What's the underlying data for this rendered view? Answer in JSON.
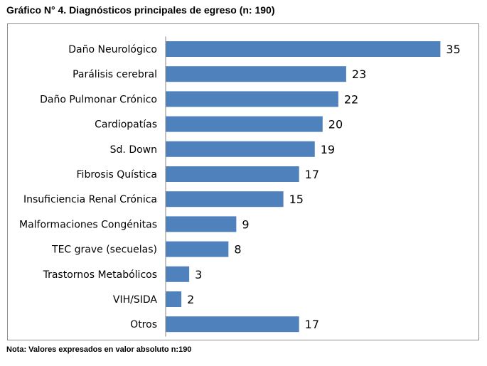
{
  "title": "Gráfico N° 4. Diagnósticos principales de egreso (n: 190)",
  "note": "Nota: Valores expresados en valor absoluto n:190",
  "colors": {
    "bar": "#4f81bd",
    "frame": "#8c8c8c",
    "axis": "#868686"
  },
  "chart_data": {
    "type": "bar",
    "orientation": "horizontal",
    "categories": [
      "Daño Neurológico",
      "Parálisis cerebral",
      "Daño Pulmonar Crónico",
      "Cardiopatías",
      "Sd. Down",
      "Fibrosis Quística",
      "Insuficiencia Renal Crónica",
      "Malformaciones Congénitas",
      "TEC grave (secuelas)",
      "Trastornos Metabólicos",
      "VIH/SIDA",
      "Otros"
    ],
    "values": [
      35,
      23,
      22,
      20,
      19,
      17,
      15,
      9,
      8,
      3,
      2,
      17
    ],
    "data_labels": true,
    "legend": "none",
    "grid": false
  }
}
